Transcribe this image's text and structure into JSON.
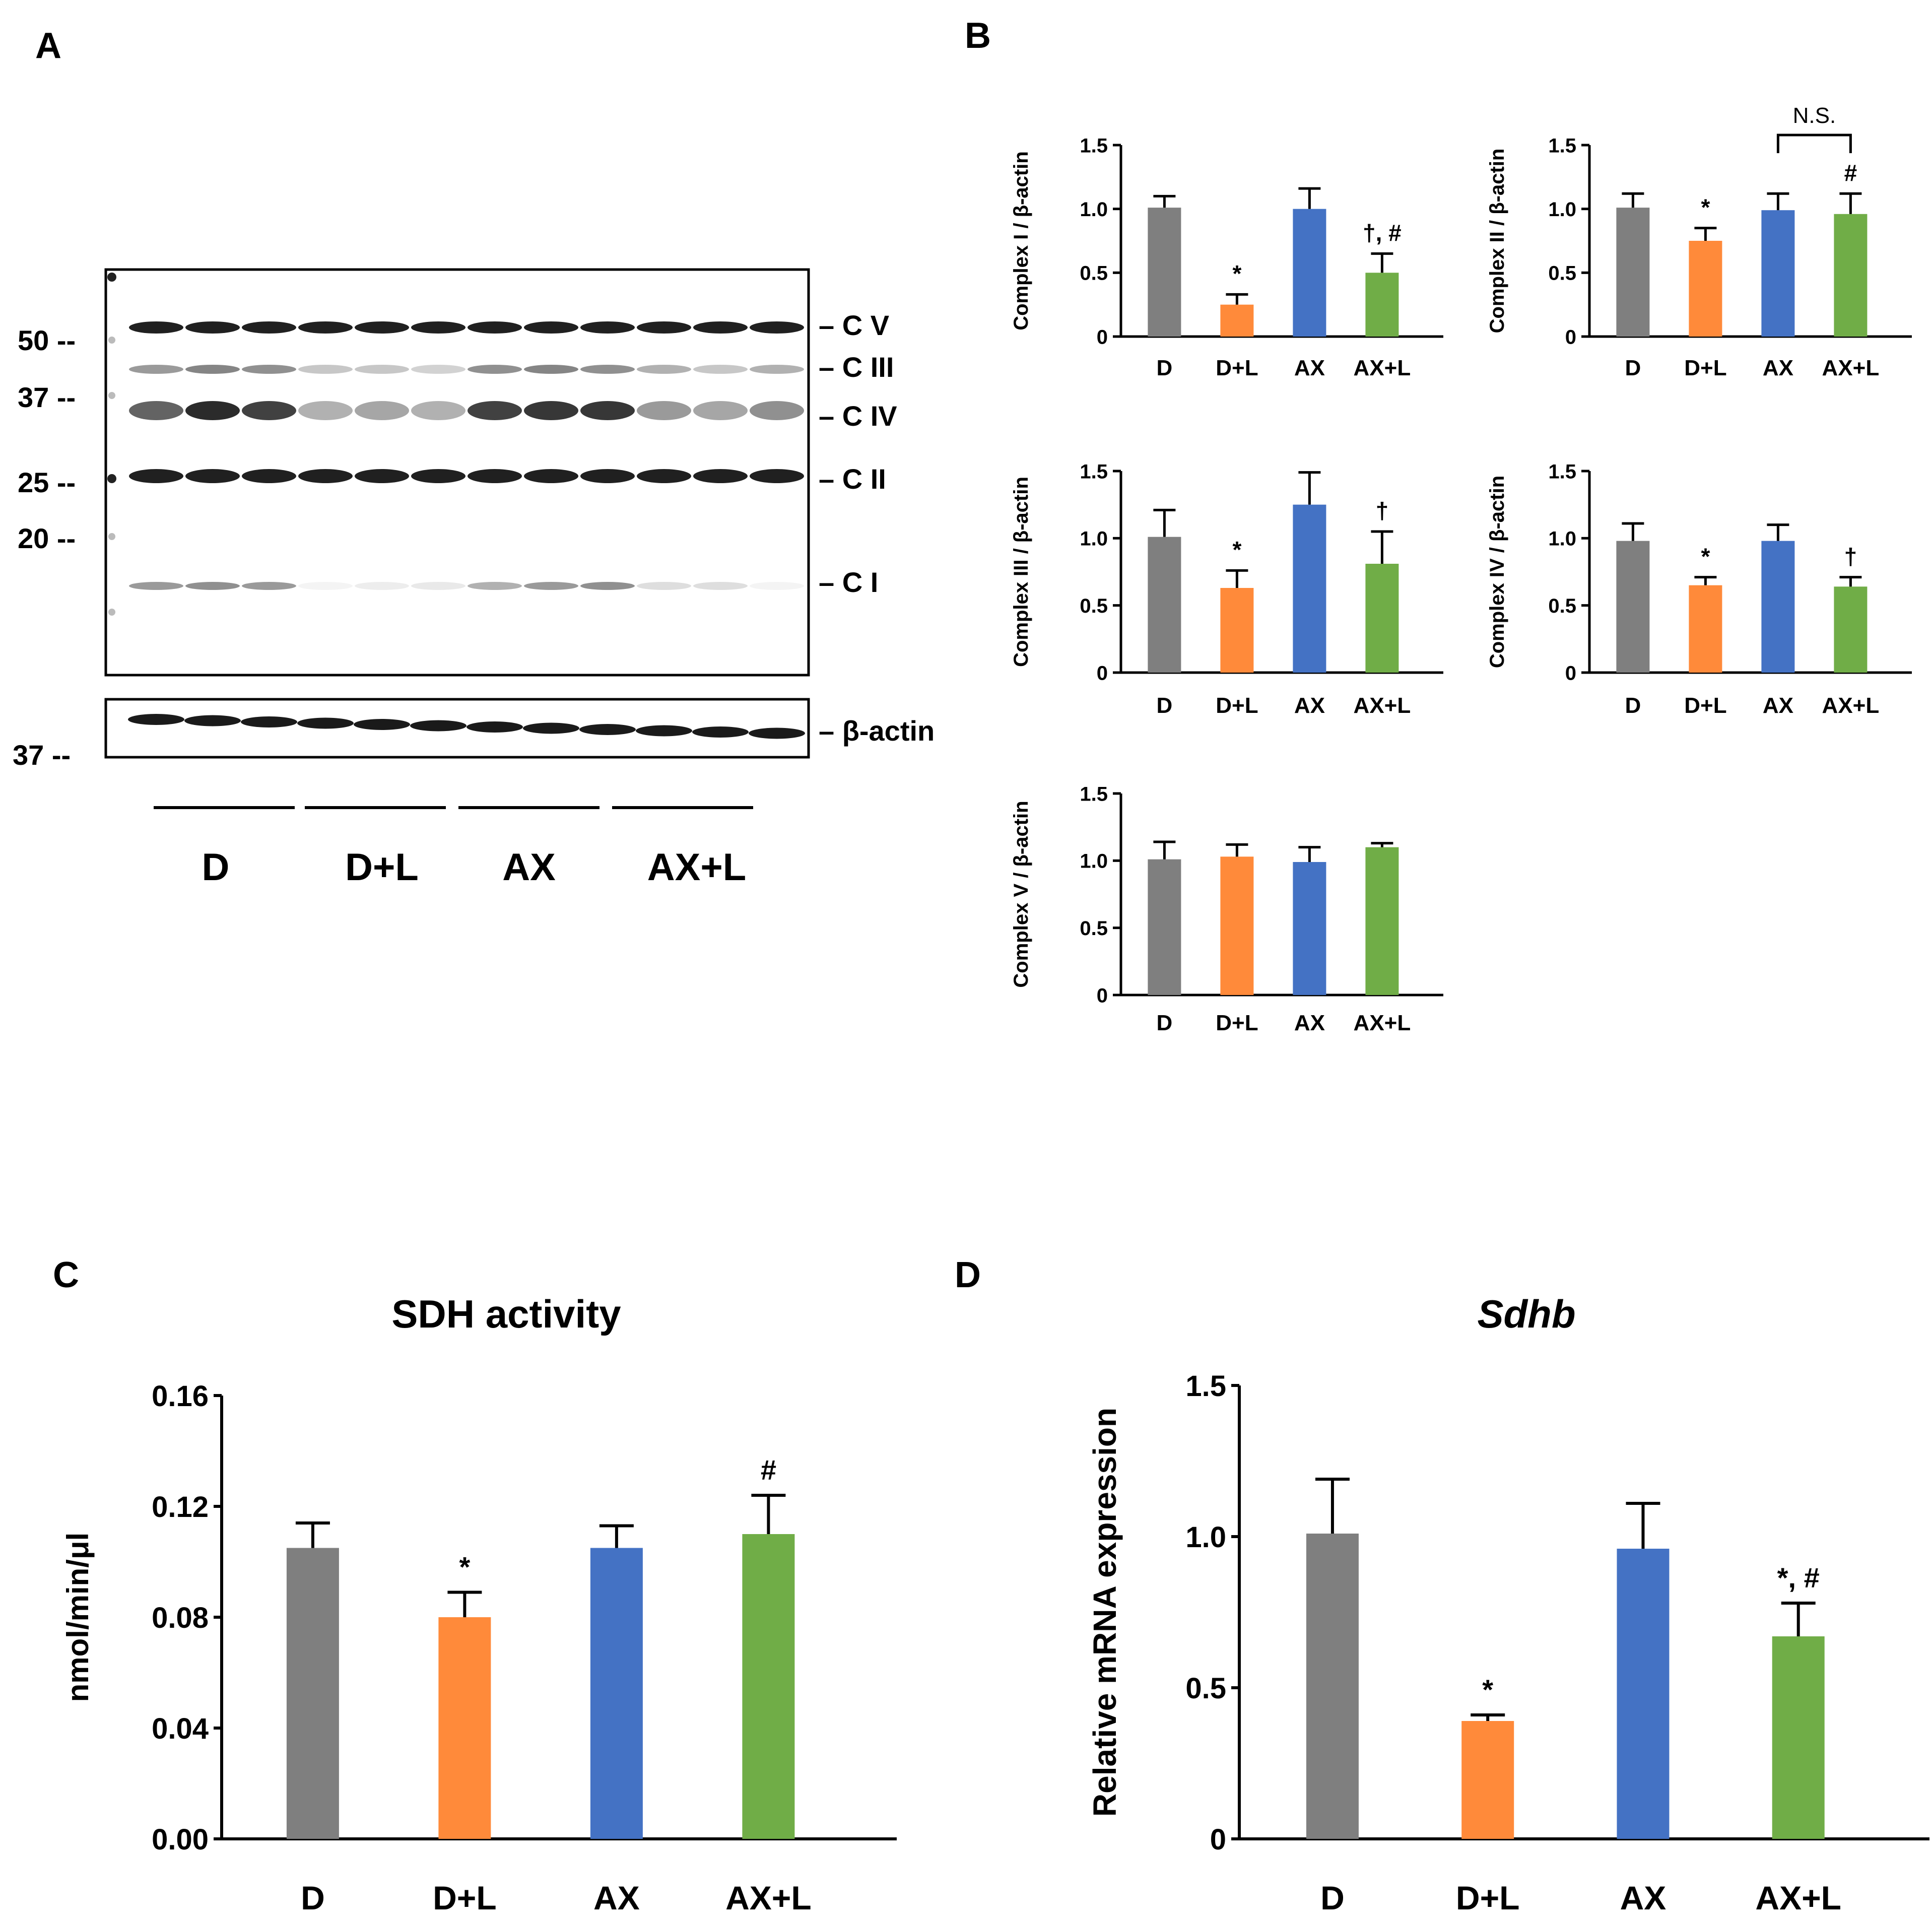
{
  "panel_labels": {
    "a": "A",
    "b": "B",
    "c": "C",
    "d": "D"
  },
  "colors": {
    "D": "#7f7f7f",
    "D+L": "#ff8a3a",
    "AX": "#4472c4",
    "AX+L": "#70ad47"
  },
  "blot": {
    "markers": [
      "50 --",
      "37 --",
      "25 --",
      "20 --"
    ],
    "actin_marker": "37 --",
    "band_labels": [
      "– C V",
      "– C III",
      "– C IV",
      "– C II",
      "– C I"
    ],
    "actin_label": "– β-actin",
    "groups": [
      "D",
      "D+L",
      "AX",
      "AX+L"
    ],
    "lane_intensity": {
      "CV": [
        1.0,
        1.0,
        1.0,
        1.0,
        1.0,
        1.0,
        1.0,
        1.0,
        1.0,
        1.0,
        1.0,
        1.0
      ],
      "CIII": [
        0.45,
        0.55,
        0.5,
        0.25,
        0.25,
        0.2,
        0.5,
        0.55,
        0.5,
        0.35,
        0.25,
        0.35
      ],
      "CIV": [
        0.7,
        0.95,
        0.85,
        0.35,
        0.4,
        0.35,
        0.85,
        0.9,
        0.9,
        0.45,
        0.4,
        0.5
      ],
      "CII": [
        1.0,
        1.0,
        1.0,
        1.0,
        1.0,
        1.0,
        1.0,
        1.0,
        1.0,
        1.0,
        1.0,
        1.0
      ],
      "CI": [
        0.45,
        0.5,
        0.45,
        0.05,
        0.08,
        0.1,
        0.35,
        0.45,
        0.5,
        0.15,
        0.15,
        0.05
      ],
      "actin": [
        1.0,
        1.0,
        1.0,
        1.0,
        1.0,
        1.0,
        1.0,
        1.0,
        1.0,
        1.0,
        1.0,
        1.0
      ]
    }
  },
  "chart_data": [
    {
      "id": "c1",
      "type": "bar",
      "ylabel": "Complex I / β-actin",
      "categories": [
        "D",
        "D+L",
        "AX",
        "AX+L"
      ],
      "values": [
        1.01,
        0.25,
        1.0,
        0.5
      ],
      "errors": [
        0.09,
        0.08,
        0.16,
        0.15
      ],
      "ylim": [
        0,
        1.5
      ],
      "yticks": [
        "0",
        "0.5",
        "1.0",
        "1.5"
      ],
      "annotations": [
        "",
        "*",
        "",
        "†, #"
      ]
    },
    {
      "id": "c2",
      "type": "bar",
      "ylabel": "Complex II / β-actin",
      "categories": [
        "D",
        "D+L",
        "AX",
        "AX+L"
      ],
      "values": [
        1.01,
        0.75,
        0.99,
        0.96
      ],
      "errors": [
        0.11,
        0.1,
        0.13,
        0.16
      ],
      "ylim": [
        0,
        1.5
      ],
      "yticks": [
        "0",
        "0.5",
        "1.0",
        "1.5"
      ],
      "annotations": [
        "",
        "*",
        "",
        "#"
      ],
      "bracket": {
        "from": 2,
        "to": 3,
        "label": "N.S."
      }
    },
    {
      "id": "c3",
      "type": "bar",
      "ylabel": "Complex III / β-actin",
      "categories": [
        "D",
        "D+L",
        "AX",
        "AX+L"
      ],
      "values": [
        1.01,
        0.63,
        1.25,
        0.81
      ],
      "errors": [
        0.2,
        0.13,
        0.24,
        0.24
      ],
      "ylim": [
        0,
        1.5
      ],
      "yticks": [
        "0",
        "0.5",
        "1.0",
        "1.5"
      ],
      "annotations": [
        "",
        "*",
        "",
        "†"
      ]
    },
    {
      "id": "c4",
      "type": "bar",
      "ylabel": "Complex IV / β-actin",
      "categories": [
        "D",
        "D+L",
        "AX",
        "AX+L"
      ],
      "values": [
        0.98,
        0.65,
        0.98,
        0.64
      ],
      "errors": [
        0.13,
        0.06,
        0.12,
        0.07
      ],
      "ylim": [
        0,
        1.5
      ],
      "yticks": [
        "0",
        "0.5",
        "1.0",
        "1.5"
      ],
      "annotations": [
        "",
        "*",
        "",
        "†"
      ]
    },
    {
      "id": "c5",
      "type": "bar",
      "ylabel": "Complex V / β-actin",
      "categories": [
        "D",
        "D+L",
        "AX",
        "AX+L"
      ],
      "values": [
        1.01,
        1.03,
        0.99,
        1.1
      ],
      "errors": [
        0.13,
        0.09,
        0.11,
        0.03
      ],
      "ylim": [
        0,
        1.5
      ],
      "yticks": [
        "0",
        "0.5",
        "1.0",
        "1.5"
      ],
      "annotations": [
        "",
        "",
        "",
        ""
      ]
    },
    {
      "id": "sdh",
      "type": "bar",
      "title": "SDH activity",
      "ylabel": "nmol/min/μl",
      "categories": [
        "D",
        "D+L",
        "AX",
        "AX+L"
      ],
      "values": [
        0.105,
        0.08,
        0.105,
        0.11
      ],
      "errors": [
        0.009,
        0.009,
        0.008,
        0.014
      ],
      "ylim": [
        0,
        0.16
      ],
      "yticks": [
        "0.00",
        "0.04",
        "0.08",
        "0.12",
        "0.16"
      ],
      "annotations": [
        "",
        "*",
        "",
        "#"
      ]
    },
    {
      "id": "sdhb",
      "type": "bar",
      "title": "Sdhb",
      "ylabel": "Relative mRNA expression",
      "categories": [
        "D",
        "D+L",
        "AX",
        "AX+L"
      ],
      "values": [
        1.01,
        0.39,
        0.96,
        0.67
      ],
      "errors": [
        0.18,
        0.02,
        0.15,
        0.11
      ],
      "ylim": [
        0,
        1.5
      ],
      "yticks": [
        "0",
        "0.5",
        "1.0",
        "1.5"
      ],
      "annotations": [
        "",
        "*",
        "",
        "*, #"
      ]
    }
  ]
}
